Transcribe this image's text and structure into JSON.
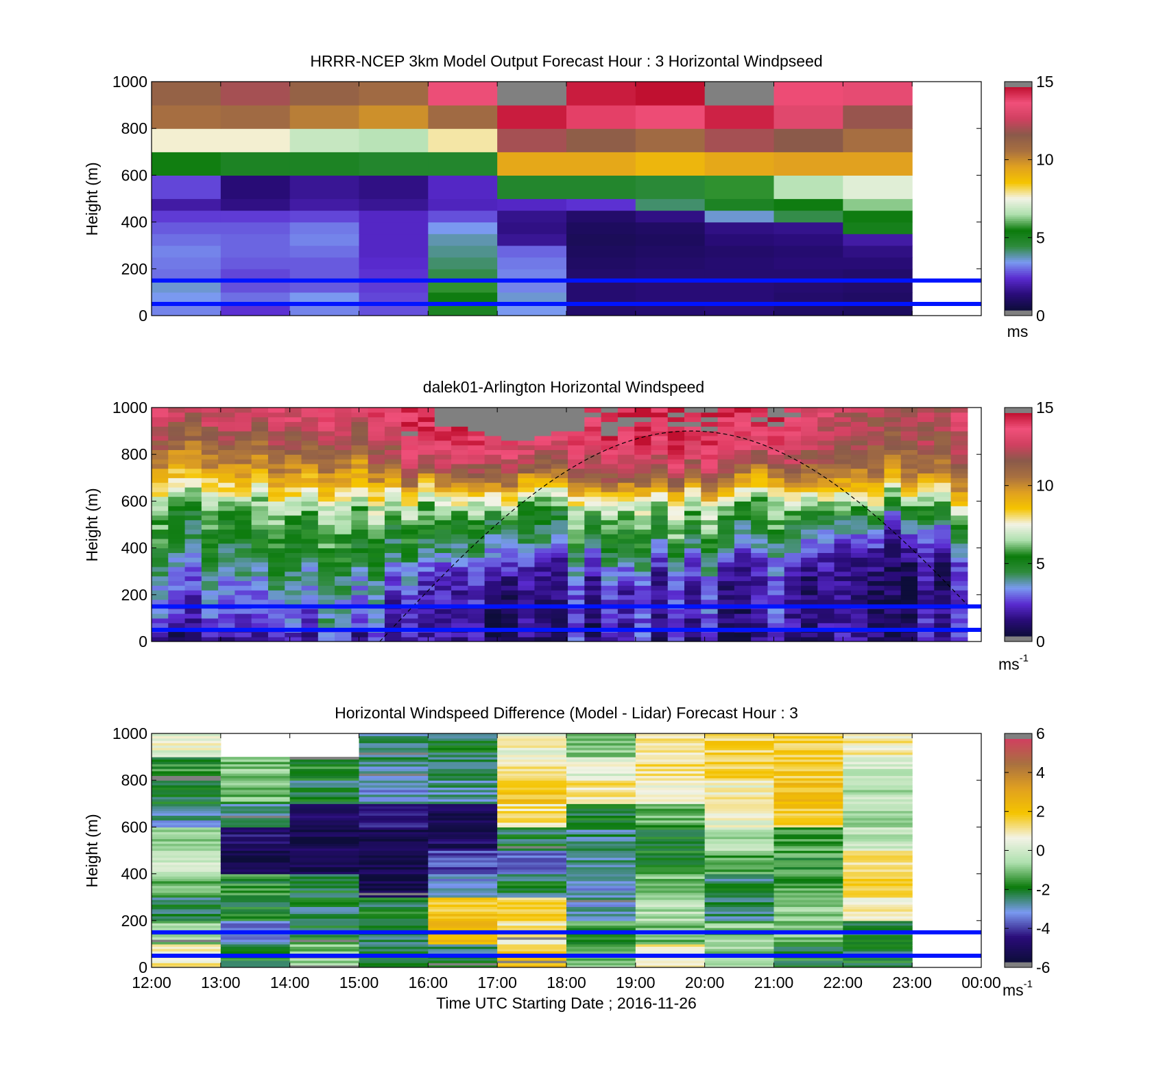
{
  "xaxis": {
    "label": "Time UTC  Starting Date ; 2016-11-26",
    "ticks": [
      "12:00",
      "13:00",
      "14:00",
      "15:00",
      "16:00",
      "17:00",
      "18:00",
      "19:00",
      "20:00",
      "21:00",
      "22:00",
      "23:00",
      "00:00"
    ]
  },
  "ylabel": "Height (m)",
  "yticks": [
    "0",
    "200",
    "400",
    "600",
    "800",
    "1000"
  ],
  "colors": {
    "reference_lines": "#0014ff",
    "missing": "#808080",
    "speed_scale": [
      "#0d0d3a",
      "#2a0c7a",
      "#5a2bd0",
      "#7a9af0",
      "#2e8b3c",
      "#0a7a0a",
      "#aee0ae",
      "#f3f3e6",
      "#f5c400",
      "#e0a020",
      "#a87040",
      "#8a5a4a",
      "#d04060",
      "#f0507a",
      "#c01030"
    ],
    "diff_scale": [
      "#0d0d3a",
      "#2a0c7a",
      "#7a9af0",
      "#0a7a0a",
      "#aee0ae",
      "#f3f3e6",
      "#f5c400",
      "#e0a020",
      "#a87040",
      "#d04060"
    ]
  },
  "panels": [
    {
      "id": "model",
      "title": "HRRR-NCEP 3km Model Output   Forecast Hour : 3 Horizontal Windpseed",
      "colorbar": {
        "ticks": [
          "0",
          "5",
          "10",
          "15"
        ],
        "unit_base": "ms",
        "unit_sup": ""
      }
    },
    {
      "id": "lidar",
      "title": "dalek01-Arlington  Horizontal Windspeed",
      "colorbar": {
        "ticks": [
          "0",
          "5",
          "10",
          "15"
        ],
        "unit_base": "ms",
        "unit_sup": "-1"
      }
    },
    {
      "id": "diff",
      "title": "Horizontal Windspeed Difference (Model - Lidar) Forecast Hour : 3",
      "colorbar": {
        "ticks": [
          "-6",
          "-4",
          "-2",
          "0",
          "2",
          "4",
          "6"
        ],
        "unit_base": "ms",
        "unit_sup": "-1"
      }
    }
  ],
  "chart_data": [
    {
      "type": "heatmap",
      "title": "HRRR-NCEP 3km Model Output   Forecast Hour : 3 Horizontal Windpseed",
      "ylabel": "Height (m)",
      "ylim": [
        0,
        1000
      ],
      "x_hours": [
        12,
        13,
        14,
        15,
        16,
        17,
        18,
        19,
        20,
        21,
        22
      ],
      "heights_m": [
        25,
        75,
        125,
        175,
        225,
        275,
        325,
        375,
        425,
        475,
        550,
        650,
        750,
        850,
        950
      ],
      "values_ms": [
        [
          3.0,
          2.2,
          3.0,
          2.5,
          4.8,
          3.2,
          0.8,
          0.9,
          1.0,
          0.7,
          0.6
        ],
        [
          3.2,
          2.8,
          3.2,
          2.4,
          5.2,
          3.4,
          0.9,
          1.0,
          1.0,
          0.8,
          0.7
        ],
        [
          3.4,
          2.5,
          2.6,
          2.3,
          5.6,
          3.0,
          0.9,
          1.0,
          1.0,
          0.9,
          0.8
        ],
        [
          2.8,
          2.4,
          2.6,
          2.2,
          4.2,
          3.0,
          0.8,
          0.9,
          0.9,
          0.9,
          0.8
        ],
        [
          2.9,
          2.6,
          2.6,
          2.1,
          4.0,
          2.9,
          0.7,
          0.8,
          0.9,
          1.0,
          1.0
        ],
        [
          3.0,
          2.7,
          2.8,
          2.0,
          3.8,
          2.7,
          0.6,
          0.7,
          0.8,
          0.9,
          1.2
        ],
        [
          2.8,
          2.7,
          3.0,
          2.0,
          3.6,
          1.4,
          0.5,
          0.6,
          1.0,
          1.1,
          1.6
        ],
        [
          2.6,
          2.6,
          2.9,
          2.0,
          3.2,
          1.2,
          0.6,
          0.7,
          1.2,
          1.3,
          5.0
        ],
        [
          2.3,
          2.3,
          2.4,
          2.0,
          2.5,
          1.3,
          0.8,
          1.2,
          3.4,
          4.2,
          5.2
        ],
        [
          1.6,
          1.2,
          1.6,
          1.4,
          1.9,
          2.0,
          2.2,
          4.0,
          4.8,
          5.2,
          6.2
        ],
        [
          2.4,
          1.0,
          1.4,
          1.2,
          2.0,
          4.6,
          4.6,
          4.4,
          5.6,
          6.6,
          7.2
        ],
        [
          5.4,
          4.8,
          4.8,
          4.6,
          4.6,
          9.4,
          9.4,
          9.0,
          9.4,
          9.6,
          9.6
        ],
        [
          7.6,
          7.6,
          6.8,
          6.6,
          7.8,
          12.2,
          11.6,
          11.0,
          12.2,
          11.8,
          10.8
        ],
        [
          10.8,
          11.0,
          10.4,
          10.0,
          11.0,
          14.8,
          14.2,
          14.0,
          14.7,
          13.4,
          12.0
        ],
        [
          11.4,
          12.2,
          11.4,
          11.0,
          13.8,
          0,
          14.8,
          15.0,
          0,
          14.0,
          13.6
        ]
      ],
      "missing_cells": [
        [
          14,
          5
        ],
        [
          14,
          8
        ]
      ],
      "reference_lines_m": [
        50,
        150
      ],
      "units": "ms",
      "colorbar_range": [
        0,
        15
      ]
    },
    {
      "type": "heatmap",
      "title": "dalek01-Arlington  Horizontal Windspeed",
      "ylabel": "Height (m)",
      "ylim": [
        0,
        1000
      ],
      "x_range_hours": [
        12,
        23.8
      ],
      "columns": 49,
      "speed_profile_ms": {
        "heights_m": [
          0,
          60,
          120,
          180,
          240,
          300,
          360,
          420,
          480,
          540,
          600,
          660,
          720,
          780,
          840,
          900,
          960,
          1000
        ],
        "early_12_15h": [
          1.5,
          2.5,
          3.0,
          3.2,
          3.6,
          4.2,
          4.8,
          5.2,
          5.6,
          6.0,
          6.8,
          8.2,
          9.6,
          10.6,
          11.6,
          12.4,
          13.2,
          13.5
        ],
        "mid_16_21h": [
          1.2,
          1.6,
          1.6,
          1.6,
          1.8,
          2.2,
          3.0,
          4.2,
          5.0,
          5.6,
          6.8,
          9.0,
          11.4,
          12.8,
          13.8,
          14.4,
          14.8,
          15.0
        ],
        "late_22_24h": [
          1.6,
          1.8,
          1.6,
          1.4,
          1.2,
          1.4,
          1.8,
          2.4,
          3.6,
          5.0,
          6.6,
          8.8,
          10.4,
          11.4,
          12.0,
          12.4,
          12.6,
          12.7
        ]
      },
      "dashed_curve": {
        "x_hours": [
          15.3,
          23.8
        ],
        "peak_m": 900,
        "peak_hour": 19.8
      },
      "reference_lines_m": [
        50,
        150
      ],
      "units": "ms-1",
      "colorbar_range": [
        0,
        15
      ]
    },
    {
      "type": "heatmap",
      "title": "Horizontal Windspeed Difference (Model - Lidar) Forecast Hour : 3",
      "ylabel": "Height (m)",
      "ylim": [
        0,
        1000
      ],
      "xlabel": "Time UTC  Starting Date ; 2016-11-26",
      "x_hours": [
        12,
        13,
        14,
        15,
        16,
        17,
        18,
        19,
        20,
        21,
        22
      ],
      "heights_m": [
        50,
        150,
        250,
        350,
        450,
        550,
        650,
        750,
        850,
        950
      ],
      "values_ms": [
        [
          1.0,
          -2.0,
          -1.0,
          -2.2,
          -2.4,
          2.0,
          -1.0,
          1.0,
          -1.0,
          -2.0,
          -2.2
        ],
        [
          -1.0,
          -3.4,
          -2.2,
          -2.4,
          2.4,
          1.0,
          -1.5,
          -1.0,
          -1.0,
          -1.2,
          -2.4
        ],
        [
          -2.4,
          -2.2,
          -2.4,
          -2.2,
          2.0,
          1.6,
          -3.0,
          -0.4,
          -2.6,
          -1.0,
          1.0
        ],
        [
          -1.2,
          -1.8,
          -2.2,
          -5.6,
          -3.2,
          -2.4,
          -3.2,
          -1.2,
          -2.4,
          -1.4,
          1.4
        ],
        [
          0.0,
          -5.4,
          -5.6,
          -5.6,
          -4.0,
          -3.6,
          -2.6,
          -2.0,
          -1.6,
          -1.6,
          1.2
        ],
        [
          -1.0,
          -5.0,
          -5.4,
          -5.4,
          -5.2,
          -2.2,
          -2.6,
          -2.0,
          -0.4,
          -1.6,
          -0.2
        ],
        [
          -3.0,
          -2.6,
          -5.0,
          -4.8,
          -5.4,
          1.2,
          -2.0,
          -1.4,
          0.6,
          1.8,
          -0.8
        ],
        [
          -2.2,
          -1.2,
          -2.4,
          -3.2,
          -2.8,
          2.0,
          1.2,
          0.4,
          0.8,
          2.2,
          -0.4
        ],
        [
          -1.8,
          -1.0,
          -2.0,
          -2.8,
          -2.4,
          1.0,
          0.4,
          1.2,
          1.6,
          1.8,
          -0.2
        ],
        [
          0.4,
          0,
          0,
          -2.8,
          -2.4,
          0.6,
          -1.0,
          1.2,
          1.6,
          1.8,
          1.0
        ]
      ],
      "missing_cells": [
        [
          9,
          1
        ],
        [
          9,
          2
        ]
      ],
      "reference_lines_m": [
        50,
        150
      ],
      "units": "ms-1",
      "colorbar_range": [
        -6,
        6
      ]
    }
  ]
}
